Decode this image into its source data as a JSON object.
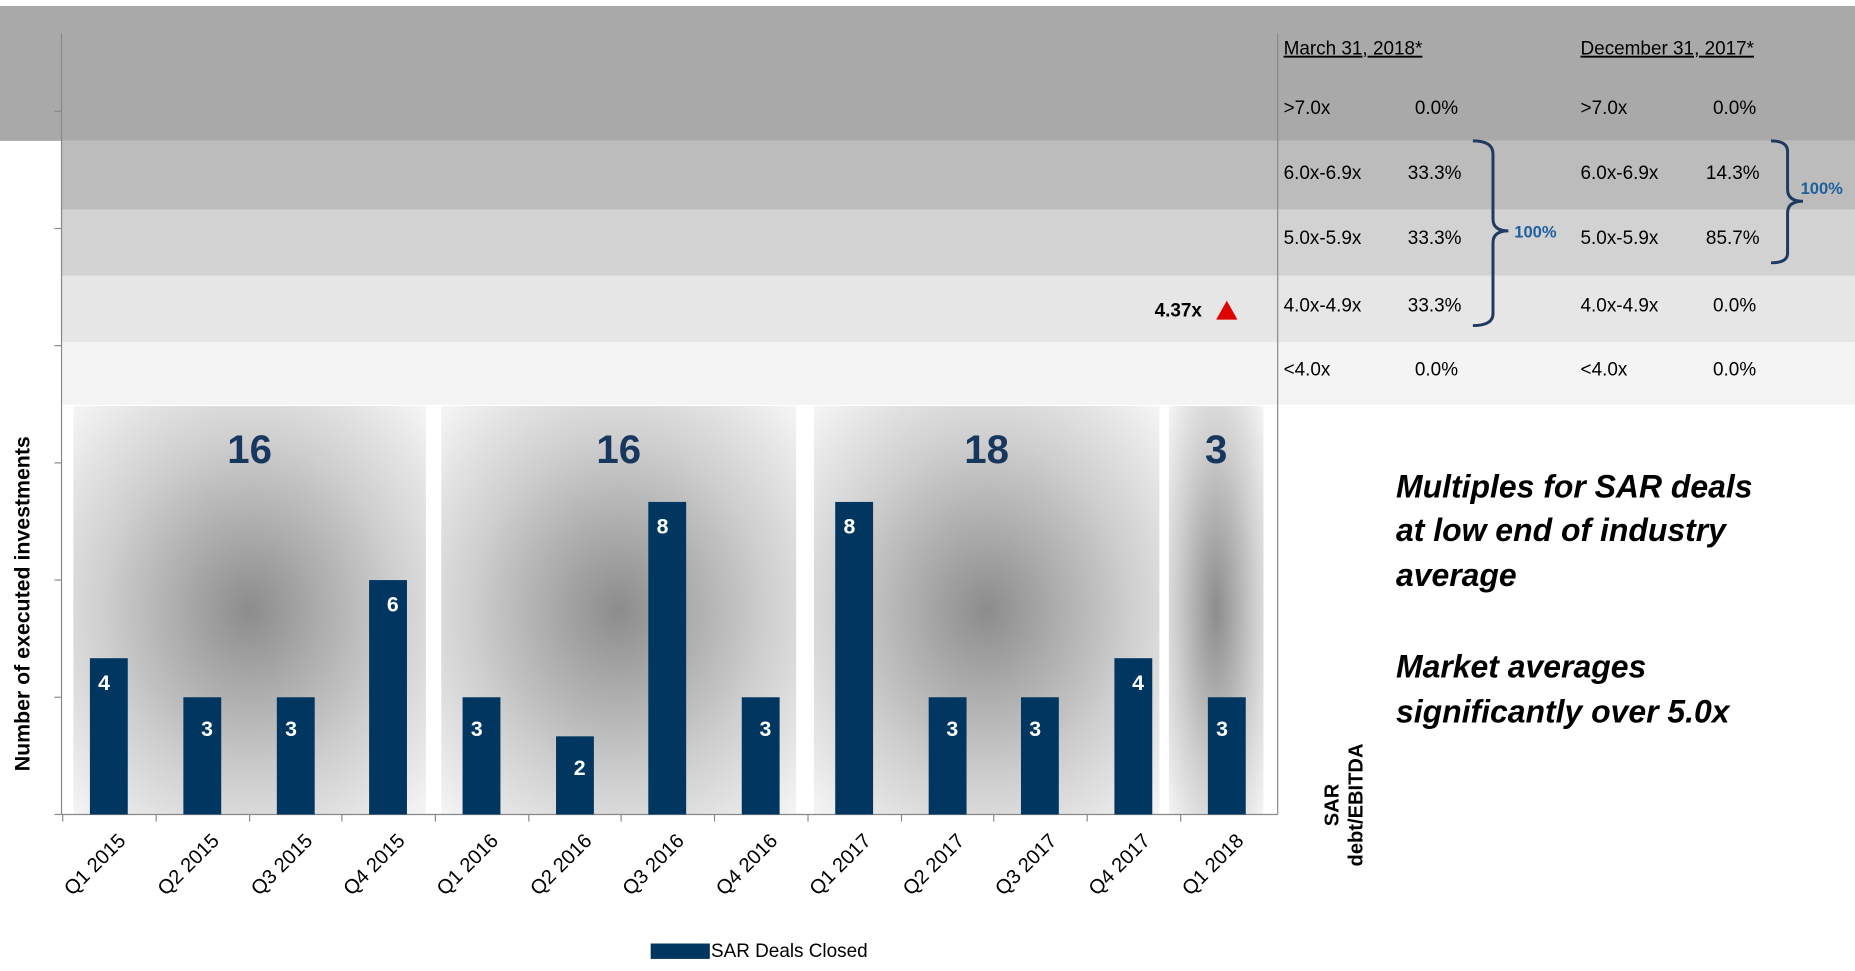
{
  "chart_data": {
    "type": "bar",
    "categories": [
      "Q1 2015",
      "Q2 2015",
      "Q3 2015",
      "Q4 2015",
      "Q1 2016",
      "Q2 2016",
      "Q3 2016",
      "Q4 2016",
      "Q1 2017",
      "Q2 2017",
      "Q3 2017",
      "Q4 2017",
      "Q1 2018"
    ],
    "series": [
      {
        "name": "SAR Deals Closed",
        "color": "#003660",
        "values": [
          4,
          3,
          3,
          6,
          3,
          2,
          8,
          3,
          8,
          3,
          3,
          4,
          3
        ]
      }
    ],
    "ylim": [
      0,
      20
    ],
    "yticks": [
      0,
      3,
      6,
      9,
      12,
      15,
      18
    ],
    "ylabel": "Number of executed investments",
    "y2label": [
      "SAR",
      "debt/EBITDA"
    ],
    "year_totals": [
      16,
      16,
      18,
      3
    ],
    "annotation": "4.37x"
  },
  "tables": [
    {
      "title": "March 31, 2018*",
      "rows": [
        [
          ">7.0x",
          "0.0%"
        ],
        [
          "6.0x-6.9x",
          "33.3%"
        ],
        [
          "5.0x-5.9x",
          "33.3%"
        ],
        [
          "4.0x-4.9x",
          "33.3%"
        ],
        [
          "<4.0x",
          "0.0%"
        ]
      ],
      "bracket_label": "100%"
    },
    {
      "title": "December 31, 2017*",
      "rows": [
        [
          ">7.0x",
          "0.0%"
        ],
        [
          "6.0x-6.9x",
          "14.3%"
        ],
        [
          "5.0x-5.9x",
          "85.7%"
        ],
        [
          "4.0x-4.9x",
          "0.0%"
        ],
        [
          "<4.0x",
          "0.0%"
        ]
      ],
      "bracket_label": "100%"
    }
  ],
  "notes": [
    [
      "Multiples for SAR deals",
      "at low end of industry",
      "average"
    ],
    [
      "Market averages",
      "significantly over 5.0x"
    ]
  ]
}
